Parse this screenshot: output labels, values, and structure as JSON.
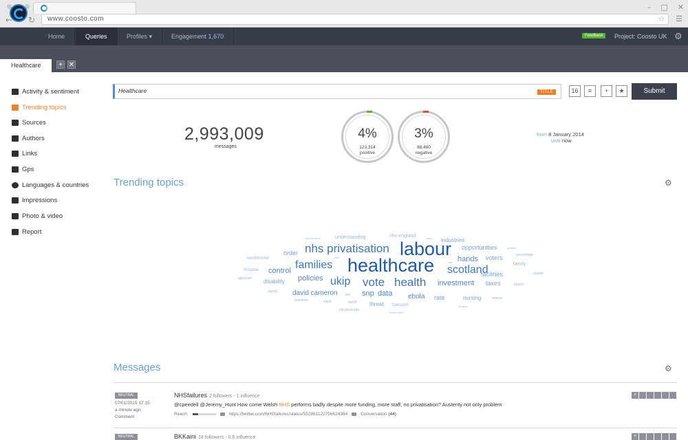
{
  "browser": {
    "url": "www.coosto.com",
    "window_controls": [
      "–",
      "□",
      "✕"
    ],
    "back_label": "←",
    "forward_label": "→",
    "reload_label": "↻",
    "star_label": "☆",
    "menu_label": "☰"
  },
  "nav": {
    "items": [
      {
        "label": "Home"
      },
      {
        "label": "Queries"
      },
      {
        "label": "Profiles",
        "caret": "▾"
      },
      {
        "label": "Engagement",
        "count": "1,670"
      }
    ],
    "feedback_label": "Feedback",
    "project_label": "Project: Coosto UK",
    "settings_icon": "⚙"
  },
  "tabs": {
    "active_tab": "Healthcare",
    "add_label": "+",
    "close_label": "✕"
  },
  "sidebar": {
    "items": [
      {
        "label": "Activity & sentiment",
        "icon": "activity-icon"
      },
      {
        "label": "Trending topics",
        "icon": "trending-icon",
        "active": true
      },
      {
        "label": "Sources",
        "icon": "sources-icon"
      },
      {
        "label": "Authors",
        "icon": "authors-icon"
      },
      {
        "label": "Links",
        "icon": "links-icon"
      },
      {
        "label": "Gps",
        "icon": "gps-icon"
      },
      {
        "label": "Languages & countries",
        "icon": "globe-icon"
      },
      {
        "label": "Impressions",
        "icon": "eye-icon"
      },
      {
        "label": "Photo & video",
        "icon": "play-icon"
      },
      {
        "label": "Report",
        "icon": "report-icon"
      }
    ]
  },
  "search": {
    "value": "Healthcare",
    "badge": "TITLE",
    "calendar_label": "16",
    "filter_label": "≡",
    "add_label": "+",
    "favorite_label": "★",
    "submit_label": "Submit"
  },
  "stats": {
    "messages_count": "2,993,009",
    "messages_label": "messages",
    "positive": {
      "pct": "4%",
      "count": "123,314",
      "label": "positive",
      "color": "#55b132"
    },
    "negative": {
      "pct": "3%",
      "count": "88,480",
      "label": "negative",
      "color": "#e24a2b"
    },
    "date_from_label": "from",
    "date_from": "8 January 2014",
    "date_until_label": "until",
    "date_until": "now"
  },
  "trending": {
    "title": "Trending topics",
    "settings_icon": "⚙",
    "words": [
      {
        "text": "healthcare"
      },
      {
        "text": "labour"
      },
      {
        "text": "nhs privatisation"
      },
      {
        "text": "families"
      },
      {
        "text": "scotland"
      },
      {
        "text": "vote"
      },
      {
        "text": "health"
      },
      {
        "text": "ukip"
      },
      {
        "text": "policies"
      },
      {
        "text": "investment"
      },
      {
        "text": "hands"
      },
      {
        "text": "control"
      },
      {
        "text": "david cameron"
      },
      {
        "text": "snp"
      },
      {
        "text": "data"
      },
      {
        "text": "ebola"
      },
      {
        "text": "order"
      },
      {
        "text": "opportunities"
      },
      {
        "text": "voters"
      },
      {
        "text": "facilities"
      },
      {
        "text": "taxes"
      },
      {
        "text": "industries"
      },
      {
        "text": "rate"
      },
      {
        "text": "nursing"
      },
      {
        "text": "disability"
      },
      {
        "text": "threat"
      },
      {
        "text": "family"
      },
      {
        "text": "understanding"
      },
      {
        "text": "nhs england"
      },
      {
        "text": "westminster"
      },
      {
        "text": "west"
      },
      {
        "text": "transport"
      },
      {
        "text": "hospital"
      },
      {
        "text": "agencies"
      },
      {
        "text": "supply"
      },
      {
        "text": "bank"
      },
      {
        "text": "infrastructure"
      },
      {
        "text": "provision"
      },
      {
        "text": "usa"
      },
      {
        "text": "percentage"
      },
      {
        "text": "people"
      },
      {
        "text": "places"
      },
      {
        "text": "reason"
      },
      {
        "text": "present"
      },
      {
        "text": "project"
      },
      {
        "text": "referendum"
      },
      {
        "text": "nhs workers"
      },
      {
        "text": "value"
      },
      {
        "text": "cash"
      },
      {
        "text": "aid"
      }
    ]
  },
  "messages": {
    "title": "Messages",
    "settings_icon": "⚙",
    "items": [
      {
        "sentiment": "NEUTRAL",
        "date": "07/01/2015 17:15",
        "ago": "a minute ago",
        "type": "Comment",
        "author": "NHSfailures",
        "author_meta": "2 followers - 1 influence",
        "text_before": "@cpeedell @Jeremy_Hunt How come Welsh ",
        "text_highlight": "NHS",
        "text_after": " performs badly despite more funding, more staff, no privatisation? Austerity not only problem",
        "reach_label": "Reach:",
        "reach_level": 0.25,
        "link": "https://twitter.com/NHSfailures/status/552861122756624384",
        "conversation_label": "Conversation",
        "conversation_count": "(44)"
      },
      {
        "sentiment": "NEUTRAL",
        "author": "BKKaini",
        "author_meta": "18 followers - 0.6 influence"
      }
    ],
    "action_icons": [
      "plus-icon",
      "user-icon",
      "mail-icon",
      "tag-icon",
      "circle-icon",
      "note-icon"
    ]
  }
}
